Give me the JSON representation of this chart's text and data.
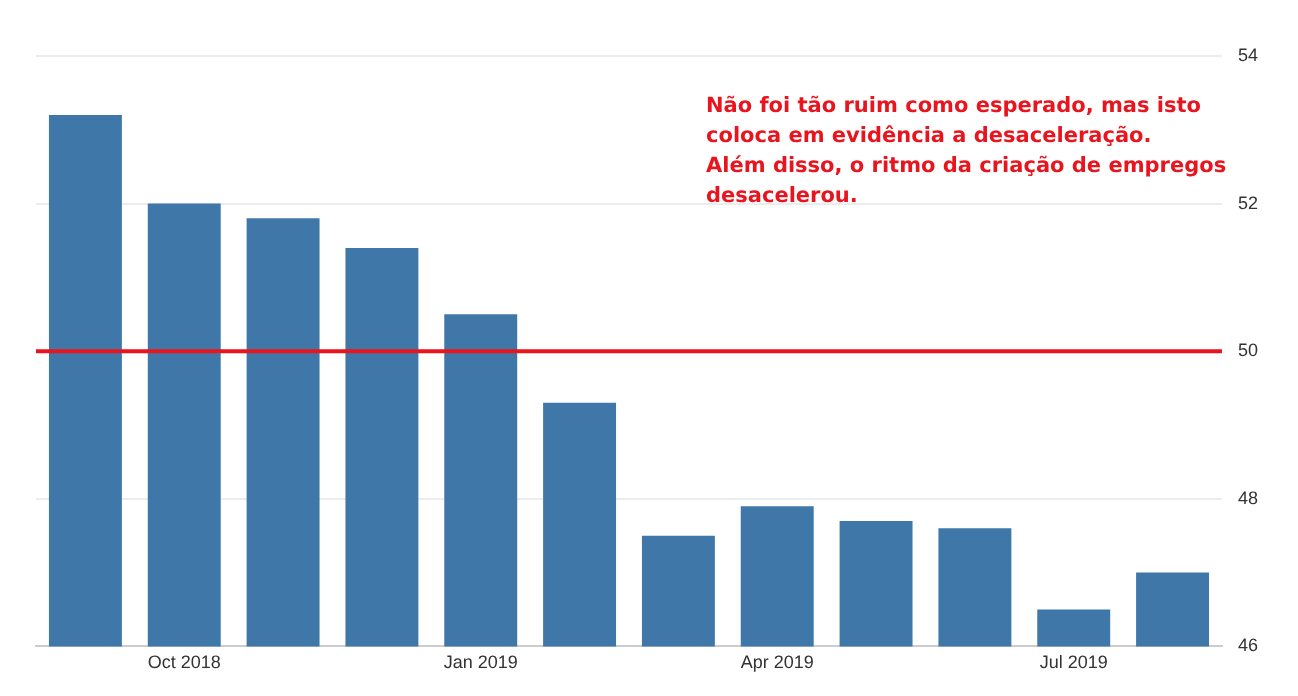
{
  "chart_data": {
    "type": "bar",
    "categories": [
      null,
      "Oct 2018",
      null,
      null,
      "Jan 2019",
      null,
      null,
      "Apr 2019",
      null,
      null,
      "Jul 2019",
      null
    ],
    "values": [
      53.2,
      52.0,
      51.8,
      51.4,
      50.5,
      49.3,
      47.5,
      47.9,
      47.7,
      47.6,
      46.5,
      47.0
    ],
    "color": "#3f77a9",
    "ylim": [
      46,
      54
    ],
    "yticks": [
      46,
      48,
      50,
      52,
      54
    ],
    "grid": "y",
    "ref_lines": [
      {
        "axis": "y",
        "value": 50,
        "color": "#e8141e"
      }
    ],
    "annotations": [
      "Não foi tão ruim como esperado, mas isto coloca em evidência a  desaceleração.",
      "Além disso, o ritmo da criação de empregos desacelerou."
    ]
  }
}
